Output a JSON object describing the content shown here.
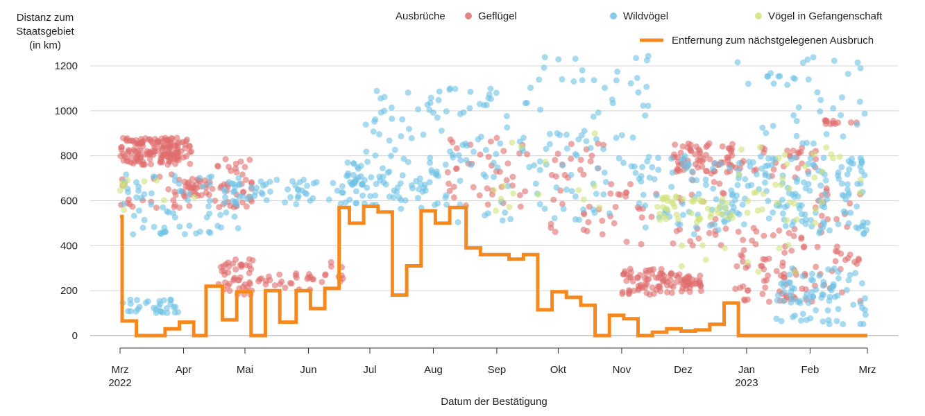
{
  "chart_data": {
    "type": "scatter",
    "title": "",
    "ylabel_lines": [
      "Distanz zum",
      "Staatsgebiet",
      "(in km)"
    ],
    "xlabel": "Datum der Bestätigung",
    "ylim": [
      0,
      1250
    ],
    "yticks": [
      0,
      200,
      400,
      600,
      800,
      1000,
      1200
    ],
    "xrange_days": [
      0,
      365
    ],
    "months": [
      {
        "label": "Mrz",
        "year": "2022",
        "day": 0
      },
      {
        "label": "Apr",
        "year": "",
        "day": 31
      },
      {
        "label": "Mai",
        "year": "",
        "day": 61
      },
      {
        "label": "Jun",
        "year": "",
        "day": 92
      },
      {
        "label": "Jul",
        "year": "",
        "day": 122
      },
      {
        "label": "Aug",
        "year": "",
        "day": 153
      },
      {
        "label": "Sep",
        "year": "",
        "day": 184
      },
      {
        "label": "Okt",
        "year": "",
        "day": 214
      },
      {
        "label": "Nov",
        "year": "",
        "day": 245
      },
      {
        "label": "Dez",
        "year": "",
        "day": 275
      },
      {
        "label": "Jan",
        "year": "2023",
        "day": 306
      },
      {
        "label": "Feb",
        "year": "",
        "day": 337
      },
      {
        "label": "Mrz",
        "year": "",
        "day": 365
      }
    ],
    "legend": {
      "title": "Ausbrüche",
      "entries": [
        {
          "name": "Geflügel",
          "color": "#e06c6c"
        },
        {
          "name": "Wildvögel",
          "color": "#6ec1e4"
        },
        {
          "name": "Vögel in Gefangenschaft",
          "color": "#cfe37c"
        }
      ],
      "line_entry": {
        "name": "Entfernung zum nächstgelegenen Ausbruch",
        "color": "#f5891e"
      }
    },
    "series": [
      {
        "name": "Geflügel",
        "kind": "scatter",
        "color": "#e06c6c",
        "clusters": [
          {
            "d": [
              0,
              35
            ],
            "y": [
              760,
              880
            ],
            "n": 160
          },
          {
            "d": [
              0,
              40
            ],
            "y": [
              560,
              720
            ],
            "n": 30
          },
          {
            "d": [
              30,
              45
            ],
            "y": [
              620,
              700
            ],
            "n": 25
          },
          {
            "d": [
              45,
              65
            ],
            "y": [
              570,
              790
            ],
            "n": 40
          },
          {
            "d": [
              48,
              65
            ],
            "y": [
              180,
              340
            ],
            "n": 45
          },
          {
            "d": [
              65,
              95
            ],
            "y": [
              200,
              280
            ],
            "n": 25
          },
          {
            "d": [
              95,
              110
            ],
            "y": [
              230,
              330
            ],
            "n": 10
          },
          {
            "d": [
              160,
              200
            ],
            "y": [
              570,
              900
            ],
            "n": 40
          },
          {
            "d": [
              210,
              245
            ],
            "y": [
              450,
              900
            ],
            "n": 40
          },
          {
            "d": [
              245,
              265
            ],
            "y": [
              180,
              300
            ],
            "n": 55
          },
          {
            "d": [
              265,
              285
            ],
            "y": [
              190,
              280
            ],
            "n": 50
          },
          {
            "d": [
              270,
              300
            ],
            "y": [
              720,
              860
            ],
            "n": 70
          },
          {
            "d": [
              245,
              300
            ],
            "y": [
              400,
              700
            ],
            "n": 35
          },
          {
            "d": [
              300,
              335
            ],
            "y": [
              150,
              480
            ],
            "n": 70
          },
          {
            "d": [
              300,
              340
            ],
            "y": [
              700,
              850
            ],
            "n": 30
          },
          {
            "d": [
              335,
              362
            ],
            "y": [
              150,
              700
            ],
            "n": 40
          },
          {
            "d": [
              342,
              362
            ],
            "y": [
              940,
              960
            ],
            "n": 12
          }
        ]
      },
      {
        "name": "Wildvögel",
        "kind": "scatter",
        "color": "#6ec1e4",
        "clusters": [
          {
            "d": [
              0,
              30
            ],
            "y": [
              100,
              160
            ],
            "n": 30
          },
          {
            "d": [
              0,
              60
            ],
            "y": [
              450,
              720
            ],
            "n": 70
          },
          {
            "d": [
              50,
              120
            ],
            "y": [
              580,
              700
            ],
            "n": 60
          },
          {
            "d": [
              110,
              160
            ],
            "y": [
              560,
              800
            ],
            "n": 80
          },
          {
            "d": [
              120,
              200
            ],
            "y": [
              800,
              1100
            ],
            "n": 60
          },
          {
            "d": [
              160,
              240
            ],
            "y": [
              500,
              900
            ],
            "n": 60
          },
          {
            "d": [
              200,
              260
            ],
            "y": [
              700,
              1250
            ],
            "n": 50
          },
          {
            "d": [
              250,
              300
            ],
            "y": [
              450,
              800
            ],
            "n": 70
          },
          {
            "d": [
              300,
              365
            ],
            "y": [
              450,
              800
            ],
            "n": 140
          },
          {
            "d": [
              320,
              365
            ],
            "y": [
              50,
              300
            ],
            "n": 80
          },
          {
            "d": [
              300,
              365
            ],
            "y": [
              850,
              1250
            ],
            "n": 40
          }
        ]
      },
      {
        "name": "Vögel in Gefangenschaft",
        "kind": "scatter",
        "color": "#cfe37c",
        "clusters": [
          {
            "d": [
              0,
              40
            ],
            "y": [
              540,
              700
            ],
            "n": 10
          },
          {
            "d": [
              180,
              240
            ],
            "y": [
              550,
              900
            ],
            "n": 15
          },
          {
            "d": [
              260,
              300
            ],
            "y": [
              500,
              620
            ],
            "n": 45
          },
          {
            "d": [
              300,
              365
            ],
            "y": [
              500,
              850
            ],
            "n": 35
          },
          {
            "d": [
              270,
              330
            ],
            "y": [
              250,
              420
            ],
            "n": 10
          }
        ]
      },
      {
        "name": "Entfernung zum nächstgelegenen Ausbruch",
        "kind": "step",
        "color": "#f5891e",
        "points": [
          [
            0,
            530
          ],
          [
            1,
            65
          ],
          [
            8,
            0
          ],
          [
            22,
            30
          ],
          [
            29,
            60
          ],
          [
            36,
            0
          ],
          [
            42,
            220
          ],
          [
            50,
            70
          ],
          [
            57,
            195
          ],
          [
            64,
            0
          ],
          [
            71,
            200
          ],
          [
            78,
            60
          ],
          [
            86,
            200
          ],
          [
            93,
            120
          ],
          [
            100,
            210
          ],
          [
            107,
            570
          ],
          [
            112,
            500
          ],
          [
            119,
            575
          ],
          [
            126,
            550
          ],
          [
            133,
            180
          ],
          [
            140,
            310
          ],
          [
            147,
            555
          ],
          [
            154,
            500
          ],
          [
            161,
            570
          ],
          [
            169,
            390
          ],
          [
            176,
            360
          ],
          [
            190,
            340
          ],
          [
            197,
            360
          ],
          [
            204,
            115
          ],
          [
            211,
            195
          ],
          [
            218,
            170
          ],
          [
            225,
            135
          ],
          [
            232,
            0
          ],
          [
            239,
            90
          ],
          [
            246,
            75
          ],
          [
            253,
            0
          ],
          [
            260,
            15
          ],
          [
            267,
            30
          ],
          [
            274,
            20
          ],
          [
            281,
            25
          ],
          [
            288,
            50
          ],
          [
            295,
            145
          ],
          [
            302,
            0
          ],
          [
            365,
            0
          ]
        ]
      }
    ]
  }
}
